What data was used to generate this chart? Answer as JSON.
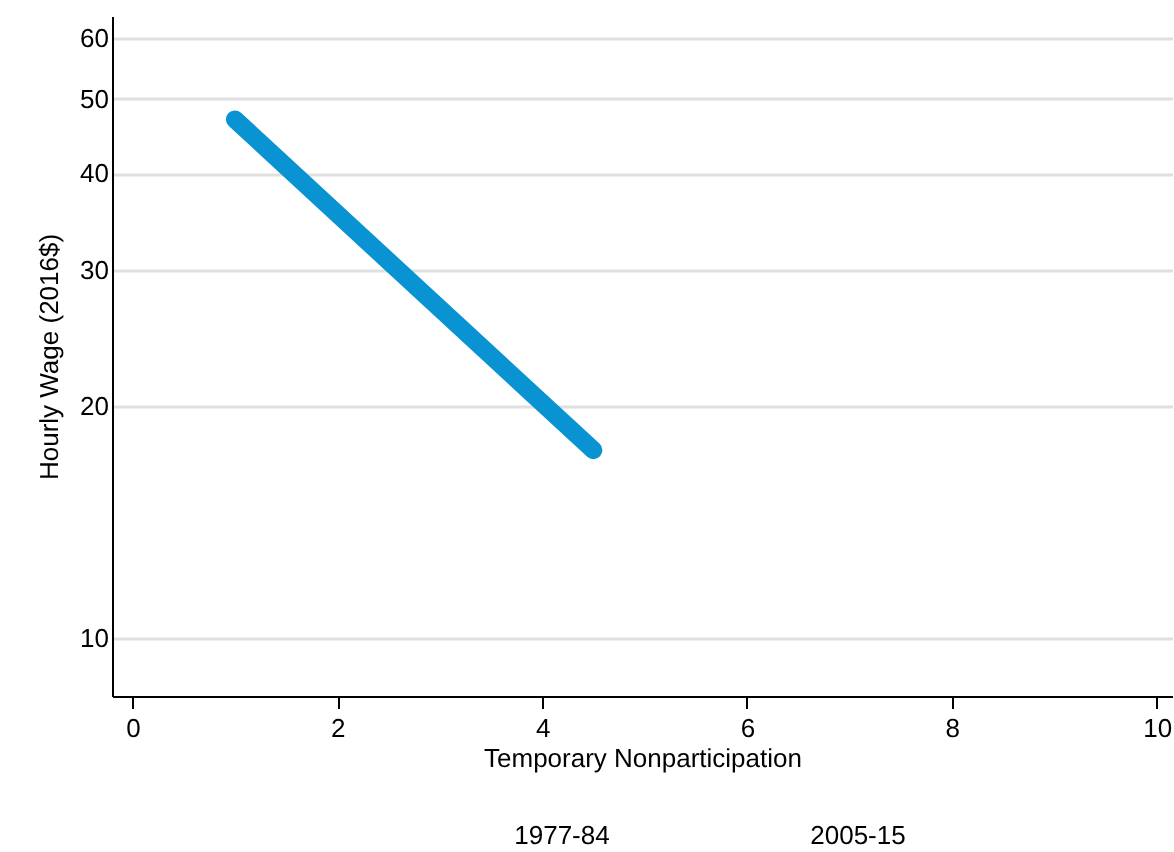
{
  "chart_data": {
    "type": "line",
    "xlabel": "Temporary Nonparticipation",
    "ylabel": "Hourly Wage (2016$)",
    "series": [
      {
        "color": "#0a93d3",
        "x": [
          1,
          4.5
        ],
        "values": [
          47,
          17.5
        ]
      }
    ],
    "xlim": [
      -0.2,
      10.15
    ],
    "xticks": [
      0,
      2,
      4,
      6,
      8,
      10
    ],
    "ylim": [
      8.4,
      64
    ],
    "yticks": [
      10,
      20,
      30,
      40,
      50,
      60
    ],
    "log": true,
    "grid": "y",
    "line_style": "solid",
    "annotations": [
      "1977-84",
      "2005-15"
    ]
  }
}
